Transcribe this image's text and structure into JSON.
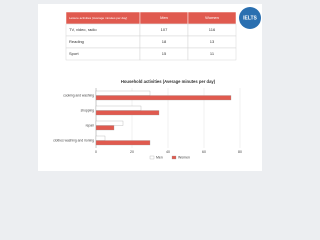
{
  "logo": "IELTS",
  "table": {
    "header": [
      "Leisure activities (Average minutes per day)",
      "Men",
      "Women"
    ],
    "rows": [
      [
        "TV, video, radio",
        107,
        116
      ],
      [
        "Reading",
        18,
        13
      ],
      [
        "Sport",
        15,
        11
      ]
    ]
  },
  "chart_data": {
    "type": "bar",
    "orientation": "horizontal",
    "title": "Household activities (Average minutes per day)",
    "categories": [
      "cooking and washing",
      "shopping",
      "repair",
      "clothes washing and ironing"
    ],
    "series": [
      {
        "name": "Men",
        "color": "#ffffff",
        "values": [
          30,
          25,
          15,
          5
        ]
      },
      {
        "name": "Women",
        "color": "#e05a4f",
        "values": [
          75,
          35,
          10,
          30
        ]
      }
    ],
    "xlim": [
      0,
      80
    ],
    "xticks": [
      0,
      20,
      40,
      60,
      80
    ],
    "grid": true
  }
}
